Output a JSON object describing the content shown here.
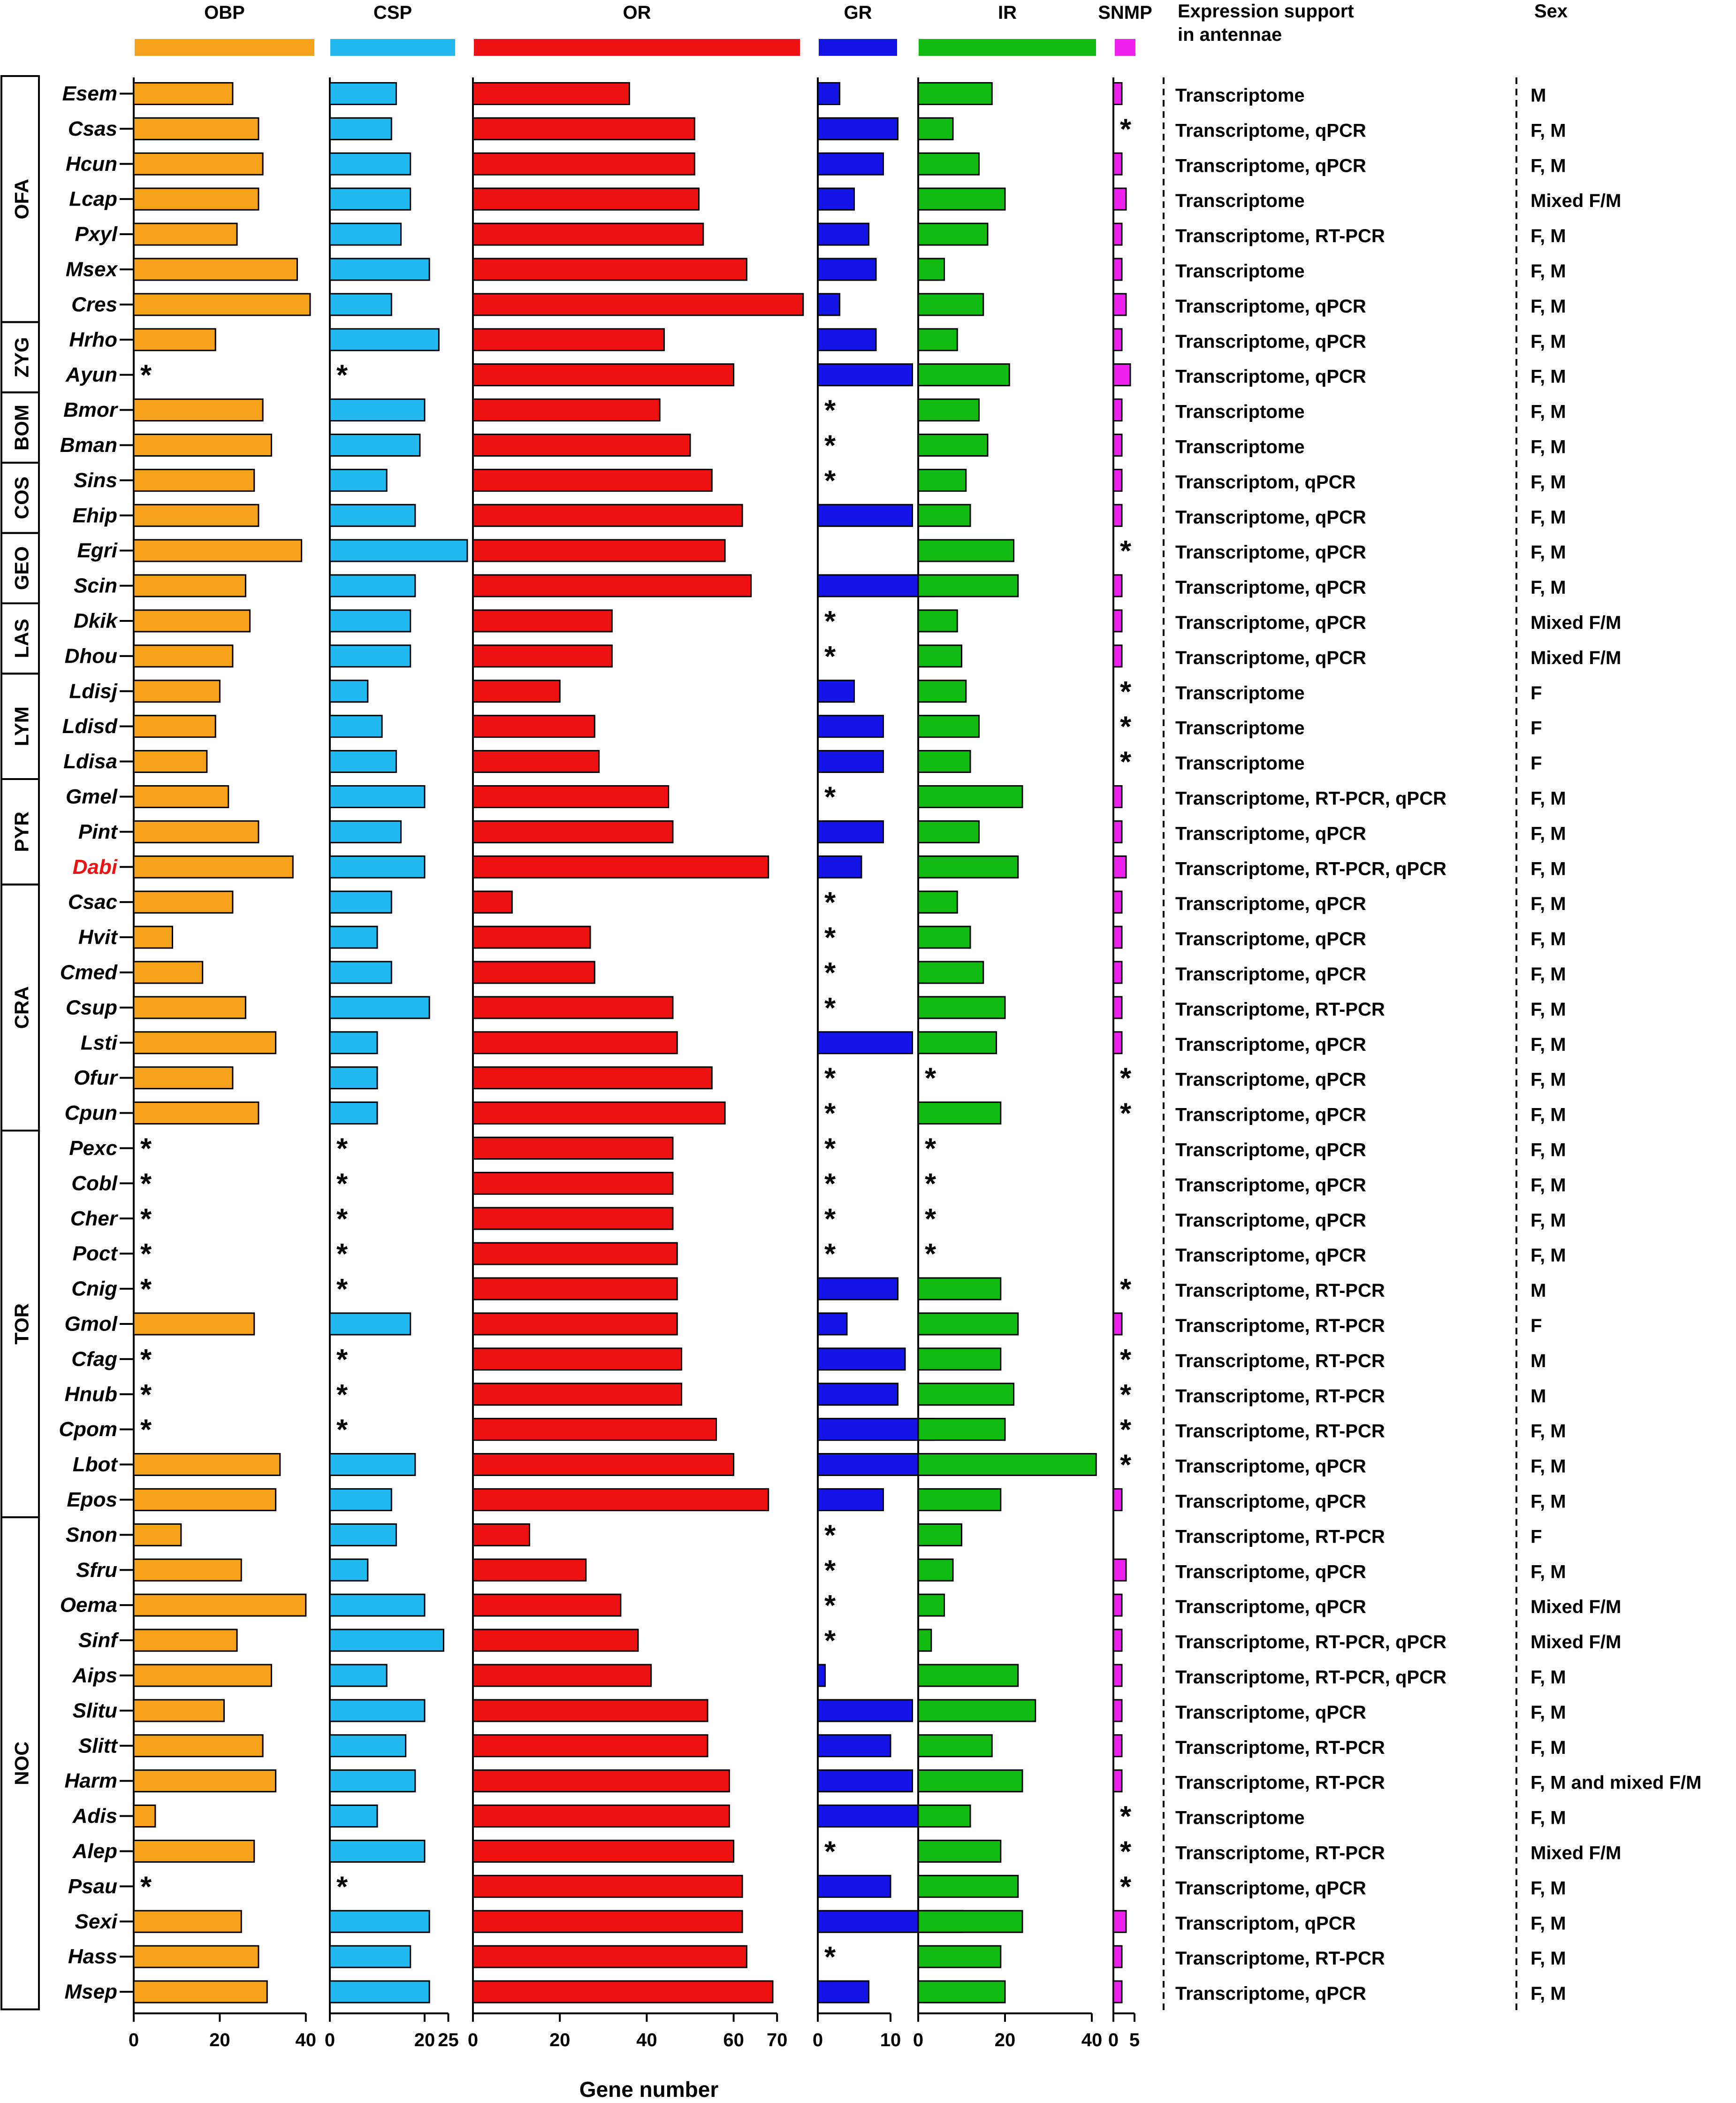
{
  "chart_data": {
    "type": "bar",
    "xlabel": "Gene number",
    "star_symbol": "*",
    "panels": [
      {
        "key": "OBP",
        "name": "OBP",
        "color": "#f7a21b",
        "ticks": [
          "0",
          "20",
          "40"
        ],
        "tick_values": [
          0,
          20,
          40
        ]
      },
      {
        "key": "CSP",
        "name": "CSP",
        "color": "#22b8f0",
        "ticks": [
          "0",
          "20",
          "25"
        ],
        "tick_values": [
          0,
          20,
          25
        ]
      },
      {
        "key": "OR",
        "name": "OR",
        "color": "#ee1111",
        "ticks": [
          "0",
          "20",
          "40",
          "60",
          "70"
        ],
        "tick_values": [
          0,
          20,
          40,
          60,
          70
        ]
      },
      {
        "key": "GR",
        "name": "GR",
        "color": "#1414e6",
        "ticks": [
          "0",
          "10"
        ],
        "tick_values": [
          0,
          10
        ]
      },
      {
        "key": "IR",
        "name": "IR",
        "color": "#11bb11",
        "ticks": [
          "0",
          "20",
          "40"
        ],
        "tick_values": [
          0,
          20,
          40
        ]
      },
      {
        "key": "SNMP",
        "name": "SNMP",
        "color": "#ee22ee",
        "ticks": [
          "0",
          "5"
        ],
        "tick_values": [
          0,
          5
        ]
      }
    ],
    "text_headers": {
      "expression": "Expression support in antennae",
      "sex": "Sex"
    },
    "families": [
      {
        "name": "OFA",
        "count": 7
      },
      {
        "name": "ZYG",
        "count": 2
      },
      {
        "name": "BOM",
        "count": 2
      },
      {
        "name": "COS",
        "count": 2
      },
      {
        "name": "GEO",
        "count": 2
      },
      {
        "name": "LAS",
        "count": 2
      },
      {
        "name": "LYM",
        "count": 3
      },
      {
        "name": "PYR",
        "count": 3
      },
      {
        "name": "CRA",
        "count": 7
      },
      {
        "name": "TOR",
        "count": 11
      },
      {
        "name": "NOC",
        "count": 14
      }
    ],
    "highlight_color": "#ee1111",
    "species": [
      {
        "name": "Esem",
        "OBP": 23,
        "CSP": 14,
        "OR": 36,
        "GR": 3,
        "IR": 17,
        "SNMP": 2,
        "expr": "Transcriptome",
        "sex": "M"
      },
      {
        "name": "Csas",
        "OBP": 29,
        "CSP": 13,
        "OR": 51,
        "GR": 11,
        "IR": 8,
        "SNMP": null,
        "expr": "Transcriptome, qPCR",
        "sex": "F, M"
      },
      {
        "name": "Hcun",
        "OBP": 30,
        "CSP": 17,
        "OR": 51,
        "GR": 9,
        "IR": 14,
        "SNMP": 2,
        "expr": "Transcriptome, qPCR",
        "sex": "F, M"
      },
      {
        "name": "Lcap",
        "OBP": 29,
        "CSP": 17,
        "OR": 52,
        "GR": 5,
        "IR": 20,
        "SNMP": 3,
        "expr": "Transcriptome",
        "sex": "Mixed F/M"
      },
      {
        "name": "Pxyl",
        "OBP": 24,
        "CSP": 15,
        "OR": 53,
        "GR": 7,
        "IR": 16,
        "SNMP": 2,
        "expr": "Transcriptome, RT-PCR",
        "sex": "F, M"
      },
      {
        "name": "Msex",
        "OBP": 38,
        "CSP": 21,
        "OR": 63,
        "GR": 8,
        "IR": 6,
        "SNMP": 2,
        "expr": "Transcriptome",
        "sex": "F, M"
      },
      {
        "name": "Cres",
        "OBP": 41,
        "CSP": 13,
        "OR": 76,
        "GR": 3,
        "IR": 15,
        "SNMP": 3,
        "expr": "Transcriptome, qPCR",
        "sex": "F, M"
      },
      {
        "name": "Hrho",
        "OBP": 19,
        "CSP": 23,
        "OR": 44,
        "GR": 8,
        "IR": 9,
        "SNMP": 2,
        "expr": "Transcriptome, qPCR",
        "sex": "F, M"
      },
      {
        "name": "Ayun",
        "OBP": null,
        "CSP": null,
        "OR": 60,
        "GR": 13,
        "IR": 21,
        "SNMP": 4,
        "expr": "Transcriptome, qPCR",
        "sex": "F, M"
      },
      {
        "name": "Bmor",
        "OBP": 30,
        "CSP": 20,
        "OR": 43,
        "GR": null,
        "IR": 14,
        "SNMP": 2,
        "expr": "Transcriptome",
        "sex": "F, M"
      },
      {
        "name": "Bman",
        "OBP": 32,
        "CSP": 19,
        "OR": 50,
        "GR": null,
        "IR": 16,
        "SNMP": 2,
        "expr": "Transcriptome",
        "sex": "F, M"
      },
      {
        "name": "Sins",
        "OBP": 28,
        "CSP": 12,
        "OR": 55,
        "GR": null,
        "IR": 11,
        "SNMP": 2,
        "expr": "Transcriptom, qPCR",
        "sex": "F, M"
      },
      {
        "name": "Ehip",
        "OBP": 29,
        "CSP": 18,
        "OR": 62,
        "GR": 13,
        "IR": 12,
        "SNMP": 2,
        "expr": "Transcriptome, qPCR",
        "sex": "F, M"
      },
      {
        "name": "Egri",
        "OBP": 39,
        "CSP": 29,
        "OR": 58,
        "GR": 0,
        "IR": 22,
        "SNMP": null,
        "expr": "Transcriptome, qPCR",
        "sex": "F, M"
      },
      {
        "name": "Scin",
        "OBP": 26,
        "CSP": 18,
        "OR": 64,
        "GR": 16,
        "IR": 23,
        "SNMP": 2,
        "expr": "Transcriptome, qPCR",
        "sex": "F, M"
      },
      {
        "name": "Dkik",
        "OBP": 27,
        "CSP": 17,
        "OR": 32,
        "GR": null,
        "IR": 9,
        "SNMP": 2,
        "expr": "Transcriptome, qPCR",
        "sex": "Mixed F/M"
      },
      {
        "name": "Dhou",
        "OBP": 23,
        "CSP": 17,
        "OR": 32,
        "GR": null,
        "IR": 10,
        "SNMP": 2,
        "expr": "Transcriptome, qPCR",
        "sex": "Mixed F/M"
      },
      {
        "name": "Ldisj",
        "OBP": 20,
        "CSP": 8,
        "OR": 20,
        "GR": 5,
        "IR": 11,
        "SNMP": null,
        "expr": "Transcriptome",
        "sex": "F"
      },
      {
        "name": "Ldisd",
        "OBP": 19,
        "CSP": 11,
        "OR": 28,
        "GR": 9,
        "IR": 14,
        "SNMP": null,
        "expr": "Transcriptome",
        "sex": "F"
      },
      {
        "name": "Ldisa",
        "OBP": 17,
        "CSP": 14,
        "OR": 29,
        "GR": 9,
        "IR": 12,
        "SNMP": null,
        "expr": "Transcriptome",
        "sex": "F"
      },
      {
        "name": "Gmel",
        "OBP": 22,
        "CSP": 20,
        "OR": 45,
        "GR": null,
        "IR": 24,
        "SNMP": 2,
        "expr": "Transcriptome, RT-PCR, qPCR",
        "sex": "F, M"
      },
      {
        "name": "Pint",
        "OBP": 29,
        "CSP": 15,
        "OR": 46,
        "GR": 9,
        "IR": 14,
        "SNMP": 2,
        "expr": "Transcriptome, qPCR",
        "sex": "F, M"
      },
      {
        "name": "Dabi",
        "OBP": 37,
        "CSP": 20,
        "OR": 68,
        "GR": 6,
        "IR": 23,
        "SNMP": 3,
        "expr": "Transcriptome, RT-PCR, qPCR",
        "sex": "F, M",
        "highlight": true
      },
      {
        "name": "Csac",
        "OBP": 23,
        "CSP": 13,
        "OR": 9,
        "GR": null,
        "IR": 9,
        "SNMP": 2,
        "expr": "Transcriptome, qPCR",
        "sex": "F, M"
      },
      {
        "name": "Hvit",
        "OBP": 9,
        "CSP": 10,
        "OR": 27,
        "GR": null,
        "IR": 12,
        "SNMP": 2,
        "expr": "Transcriptome, qPCR",
        "sex": "F, M"
      },
      {
        "name": "Cmed",
        "OBP": 16,
        "CSP": 13,
        "OR": 28,
        "GR": null,
        "IR": 15,
        "SNMP": 2,
        "expr": "Transcriptome, qPCR",
        "sex": "F, M"
      },
      {
        "name": "Csup",
        "OBP": 26,
        "CSP": 21,
        "OR": 46,
        "GR": null,
        "IR": 20,
        "SNMP": 2,
        "expr": "Transcriptome, RT-PCR",
        "sex": "F, M"
      },
      {
        "name": "Lsti",
        "OBP": 33,
        "CSP": 10,
        "OR": 47,
        "GR": 13,
        "IR": 18,
        "SNMP": 2,
        "expr": "Transcriptome, qPCR",
        "sex": "F, M"
      },
      {
        "name": "Ofur",
        "OBP": 23,
        "CSP": 10,
        "OR": 55,
        "GR": null,
        "IR": null,
        "SNMP": null,
        "expr": "Transcriptome, qPCR",
        "sex": "F, M"
      },
      {
        "name": "Cpun",
        "OBP": 29,
        "CSP": 10,
        "OR": 58,
        "GR": null,
        "IR": 19,
        "SNMP": null,
        "expr": "Transcriptome, qPCR",
        "sex": "F, M"
      },
      {
        "name": "Pexc",
        "OBP": null,
        "CSP": null,
        "OR": 46,
        "GR": null,
        "IR": null,
        "SNMP": 0,
        "expr": "Transcriptome, qPCR",
        "sex": "F, M"
      },
      {
        "name": "Cobl",
        "OBP": null,
        "CSP": null,
        "OR": 46,
        "GR": null,
        "IR": null,
        "SNMP": 0,
        "expr": "Transcriptome, qPCR",
        "sex": "F, M"
      },
      {
        "name": "Cher",
        "OBP": null,
        "CSP": null,
        "OR": 46,
        "GR": null,
        "IR": null,
        "SNMP": 0,
        "expr": "Transcriptome, qPCR",
        "sex": "F, M"
      },
      {
        "name": "Poct",
        "OBP": null,
        "CSP": null,
        "OR": 47,
        "GR": null,
        "IR": null,
        "SNMP": 0,
        "expr": "Transcriptome, qPCR",
        "sex": "F, M"
      },
      {
        "name": "Cnig",
        "OBP": null,
        "CSP": null,
        "OR": 47,
        "GR": 11,
        "IR": 19,
        "SNMP": null,
        "expr": "Transcriptome, RT-PCR",
        "sex": "M"
      },
      {
        "name": "Gmol",
        "OBP": 28,
        "CSP": 17,
        "OR": 47,
        "GR": 4,
        "IR": 23,
        "SNMP": 2,
        "expr": "Transcriptome, RT-PCR",
        "sex": "F"
      },
      {
        "name": "Cfag",
        "OBP": null,
        "CSP": null,
        "OR": 48,
        "GR": 12,
        "IR": 19,
        "SNMP": null,
        "expr": "Transcriptome, RT-PCR",
        "sex": "M"
      },
      {
        "name": "Hnub",
        "OBP": null,
        "CSP": null,
        "OR": 48,
        "GR": 11,
        "IR": 22,
        "SNMP": null,
        "expr": "Transcriptome, RT-PCR",
        "sex": "M"
      },
      {
        "name": "Cpom",
        "OBP": null,
        "CSP": null,
        "OR": 56,
        "GR": 16,
        "IR": 20,
        "SNMP": null,
        "expr": "Transcriptome, RT-PCR",
        "sex": "F, M"
      },
      {
        "name": "Lbot",
        "OBP": 34,
        "CSP": 18,
        "OR": 60,
        "GR": 15,
        "IR": 41,
        "SNMP": null,
        "expr": "Transcriptome, qPCR",
        "sex": "F, M"
      },
      {
        "name": "Epos",
        "OBP": 33,
        "CSP": 13,
        "OR": 68,
        "GR": 9,
        "IR": 19,
        "SNMP": 2,
        "expr": "Transcriptome, qPCR",
        "sex": "F, M"
      },
      {
        "name": "Snon",
        "OBP": 11,
        "CSP": 14,
        "OR": 13,
        "GR": null,
        "IR": 10,
        "SNMP": 0,
        "expr": "Transcriptome, RT-PCR",
        "sex": "F"
      },
      {
        "name": "Sfru",
        "OBP": 25,
        "CSP": 8,
        "OR": 26,
        "GR": null,
        "IR": 8,
        "SNMP": 3,
        "expr": "Transcriptome, qPCR",
        "sex": "F, M"
      },
      {
        "name": "Oema",
        "OBP": 40,
        "CSP": 20,
        "OR": 34,
        "GR": null,
        "IR": 6,
        "SNMP": 2,
        "expr": "Transcriptome, qPCR",
        "sex": "Mixed F/M"
      },
      {
        "name": "Sinf",
        "OBP": 24,
        "CSP": 24,
        "OR": 38,
        "GR": null,
        "IR": 3,
        "SNMP": 2,
        "expr": "Transcriptome, RT-PCR, qPCR",
        "sex": "Mixed F/M"
      },
      {
        "name": "Aips",
        "OBP": 32,
        "CSP": 12,
        "OR": 41,
        "GR": 1,
        "IR": 23,
        "SNMP": 2,
        "expr": "Transcriptome, RT-PCR, qPCR",
        "sex": "F, M"
      },
      {
        "name": "Slitu",
        "OBP": 21,
        "CSP": 20,
        "OR": 54,
        "GR": 13,
        "IR": 27,
        "SNMP": 2,
        "expr": "Transcriptome, qPCR",
        "sex": "F, M"
      },
      {
        "name": "Slitt",
        "OBP": 30,
        "CSP": 16,
        "OR": 54,
        "GR": 10,
        "IR": 17,
        "SNMP": 2,
        "expr": "Transcriptome, RT-PCR",
        "sex": "F, M"
      },
      {
        "name": "Harm",
        "OBP": 33,
        "CSP": 18,
        "OR": 59,
        "GR": 13,
        "IR": 24,
        "SNMP": 2,
        "expr": "Transcriptome, RT-PCR",
        "sex": "F, M and mixed F/M"
      },
      {
        "name": "Adis",
        "OBP": 5,
        "CSP": 10,
        "OR": 59,
        "GR": 18,
        "IR": 12,
        "SNMP": null,
        "expr": "Transcriptome",
        "sex": "F, M"
      },
      {
        "name": "Alep",
        "OBP": 28,
        "CSP": 20,
        "OR": 60,
        "GR": null,
        "IR": 19,
        "SNMP": null,
        "expr": "Transcriptome, RT-PCR",
        "sex": "Mixed F/M"
      },
      {
        "name": "Psau",
        "OBP": null,
        "CSP": null,
        "OR": 62,
        "GR": 10,
        "IR": 23,
        "SNMP": null,
        "expr": "Transcriptome, qPCR",
        "sex": "F, M"
      },
      {
        "name": "Sexi",
        "OBP": 25,
        "CSP": 21,
        "OR": 62,
        "GR": 20,
        "IR": 24,
        "SNMP": 3,
        "expr": "Transcriptom, qPCR",
        "sex": "F, M"
      },
      {
        "name": "Hass",
        "OBP": 29,
        "CSP": 17,
        "OR": 63,
        "GR": null,
        "IR": 19,
        "SNMP": 2,
        "expr": "Transcriptome, RT-PCR",
        "sex": "F, M"
      },
      {
        "name": "Msep",
        "OBP": 31,
        "CSP": 21,
        "OR": 69,
        "GR": 7,
        "IR": 20,
        "SNMP": 2,
        "expr": "Transcriptome, qPCR",
        "sex": "F, M"
      }
    ]
  }
}
